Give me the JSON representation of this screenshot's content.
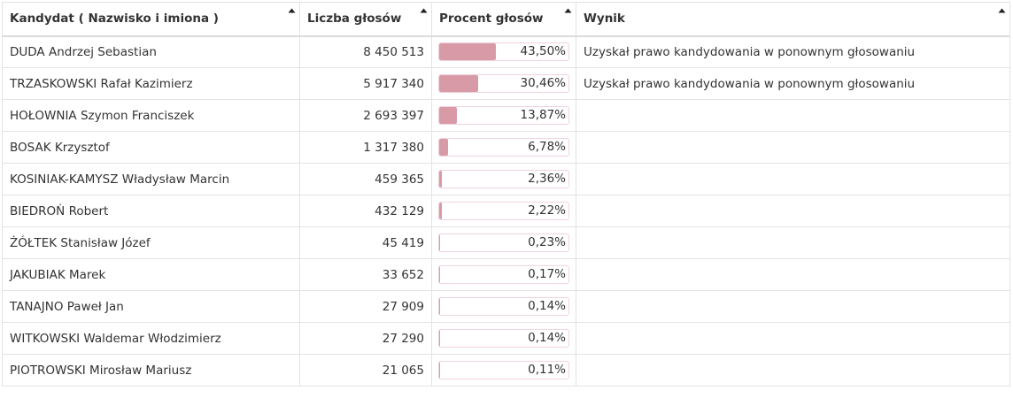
{
  "headers": {
    "candidate": "Kandydat ( Nazwisko i imiona )",
    "votes": "Liczba głosów",
    "percent": "Procent głosów",
    "result": "Wynik"
  },
  "bar_color": "#d99aa8",
  "rows": [
    {
      "name": "DUDA Andrzej Sebastian",
      "votes": "8 450 513",
      "percent": "43,50%",
      "share": 0.435,
      "result": "Uzyskał prawo kandydowania w ponownym głosowaniu"
    },
    {
      "name": "TRZASKOWSKI Rafał Kazimierz",
      "votes": "5 917 340",
      "percent": "30,46%",
      "share": 0.3046,
      "result": "Uzyskał prawo kandydowania w ponownym głosowaniu"
    },
    {
      "name": "HOŁOWNIA Szymon Franciszek",
      "votes": "2 693 397",
      "percent": "13,87%",
      "share": 0.1387,
      "result": ""
    },
    {
      "name": "BOSAK Krzysztof",
      "votes": "1 317 380",
      "percent": "6,78%",
      "share": 0.0678,
      "result": ""
    },
    {
      "name": "KOSINIAK-KAMYSZ Władysław Marcin",
      "votes": "459 365",
      "percent": "2,36%",
      "share": 0.0236,
      "result": ""
    },
    {
      "name": "BIEDROŃ Robert",
      "votes": "432 129",
      "percent": "2,22%",
      "share": 0.0222,
      "result": ""
    },
    {
      "name": "ŻÓŁTEK Stanisław Józef",
      "votes": "45 419",
      "percent": "0,23%",
      "share": 0.0023,
      "result": ""
    },
    {
      "name": "JAKUBIAK Marek",
      "votes": "33 652",
      "percent": "0,17%",
      "share": 0.0017,
      "result": ""
    },
    {
      "name": "TANAJNO Paweł Jan",
      "votes": "27 909",
      "percent": "0,14%",
      "share": 0.0014,
      "result": ""
    },
    {
      "name": "WITKOWSKI Waldemar Włodzimierz",
      "votes": "27 290",
      "percent": "0,14%",
      "share": 0.0014,
      "result": ""
    },
    {
      "name": "PIOTROWSKI Mirosław Mariusz",
      "votes": "21 065",
      "percent": "0,11%",
      "share": 0.0011,
      "result": ""
    }
  ]
}
